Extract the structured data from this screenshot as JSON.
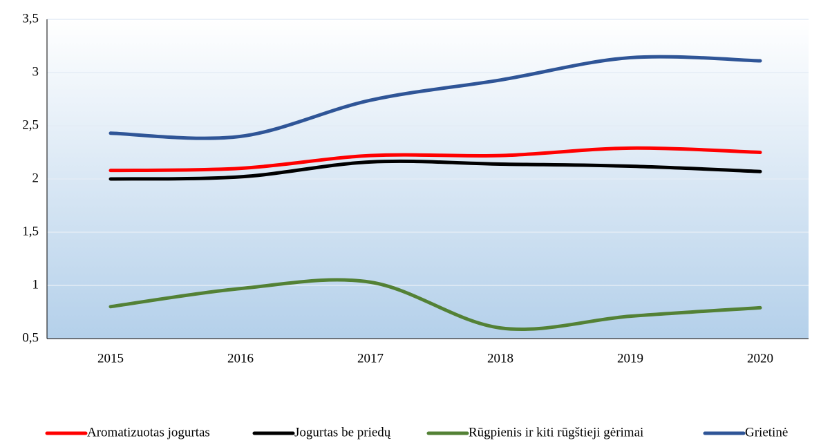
{
  "chart_data": {
    "type": "line",
    "categories": [
      "2015",
      "2016",
      "2017",
      "2018",
      "2019",
      "2020"
    ],
    "series": [
      {
        "name": "Aromatizuotas jogurtas",
        "color": "#ff0000",
        "values": [
          2.08,
          2.1,
          2.22,
          2.22,
          2.29,
          2.25
        ]
      },
      {
        "name": "Jogurtas be priedų",
        "color": "#000000",
        "values": [
          2.0,
          2.02,
          2.16,
          2.14,
          2.12,
          2.07
        ]
      },
      {
        "name": "Rūgpienis ir kiti rūgštieji gėrimai",
        "color": "#538135",
        "values": [
          0.8,
          0.97,
          1.03,
          0.6,
          0.71,
          0.79
        ]
      },
      {
        "name": "Grietinė",
        "color": "#2f5597",
        "values": [
          2.43,
          2.4,
          2.74,
          2.93,
          3.14,
          3.11
        ]
      }
    ],
    "ylim": [
      0.5,
      3.5
    ],
    "yticks": [
      {
        "value": 0.5,
        "label": "0,5"
      },
      1,
      {
        "value": 1.5,
        "label": "1,5"
      },
      2,
      {
        "value": 2.5,
        "label": "2,5"
      },
      3,
      {
        "value": 3.5,
        "label": "3,5"
      }
    ],
    "grid": true,
    "legend": "bottom"
  }
}
